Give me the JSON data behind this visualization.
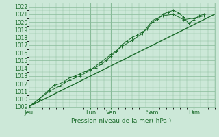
{
  "bg_color": "#cce8d8",
  "grid_color": "#88bb99",
  "line_color": "#1a6b2a",
  "ylabel": "Pression niveau de la mer( hPa )",
  "ylim": [
    1009,
    1022.5
  ],
  "yticks": [
    1009,
    1010,
    1011,
    1012,
    1013,
    1014,
    1015,
    1016,
    1017,
    1018,
    1019,
    1020,
    1021,
    1022
  ],
  "xtick_labels": [
    "Jeu",
    "",
    "",
    "Lun",
    "Ven",
    "",
    "",
    "Sam",
    "",
    "Dim"
  ],
  "xtick_positions": [
    0,
    12,
    24,
    36,
    48,
    60,
    72,
    84,
    96,
    108
  ],
  "xlim": [
    0,
    108
  ],
  "vlines": [
    0,
    36,
    48,
    72,
    96
  ],
  "series1": {
    "x": [
      0,
      3,
      6,
      9,
      12,
      15,
      18,
      21,
      24,
      27,
      30,
      33,
      36,
      39,
      42,
      45,
      48,
      51,
      54,
      57,
      60,
      63,
      66,
      69,
      72,
      75,
      78,
      81,
      84,
      87,
      90,
      93,
      96,
      99,
      102
    ],
    "y": [
      1009.0,
      1009.4,
      1010.0,
      1010.6,
      1011.2,
      1011.8,
      1012.0,
      1012.3,
      1012.8,
      1013.0,
      1013.3,
      1013.6,
      1013.9,
      1014.1,
      1014.5,
      1015.0,
      1015.6,
      1016.2,
      1017.0,
      1017.5,
      1018.0,
      1018.3,
      1018.7,
      1019.1,
      1020.0,
      1020.4,
      1021.0,
      1021.3,
      1021.5,
      1021.2,
      1020.6,
      1019.8,
      1020.3,
      1020.8,
      1021.0
    ]
  },
  "series2": {
    "x": [
      0,
      6,
      12,
      18,
      24,
      30,
      36,
      42,
      48,
      54,
      60,
      66,
      72,
      78,
      84,
      90,
      96,
      102
    ],
    "y": [
      1009.0,
      1010.0,
      1011.0,
      1011.7,
      1012.5,
      1013.0,
      1013.8,
      1014.8,
      1015.8,
      1016.8,
      1017.6,
      1018.5,
      1020.2,
      1020.8,
      1021.0,
      1020.3,
      1020.5,
      1020.8
    ]
  },
  "trend": {
    "x": [
      0,
      108
    ],
    "y": [
      1009.0,
      1021.0
    ]
  }
}
